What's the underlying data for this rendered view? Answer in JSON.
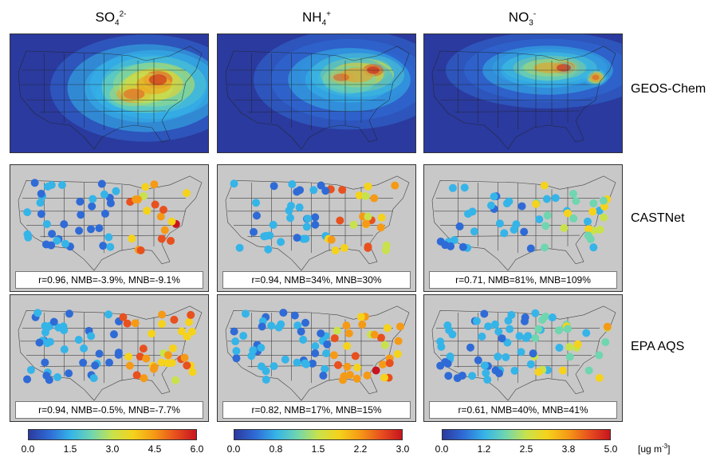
{
  "species": [
    {
      "key": "so4",
      "base": "SO",
      "sub": "4",
      "sup": "2-",
      "max": 6.0,
      "ticks": [
        "0.0",
        "1.5",
        "3.0",
        "4.5",
        "6.0"
      ]
    },
    {
      "key": "nh4",
      "base": "NH",
      "sub": "4",
      "sup": "+",
      "max": 3.0,
      "ticks": [
        "0.0",
        "0.8",
        "1.5",
        "2.2",
        "3.0"
      ]
    },
    {
      "key": "no3",
      "base": "NO",
      "sub": "3",
      "sup": "-",
      "max": 5.0,
      "ticks": [
        "0.0",
        "1.2",
        "2.5",
        "3.8",
        "5.0"
      ]
    }
  ],
  "rows": [
    {
      "key": "model",
      "label": "GEOS-Chem"
    },
    {
      "key": "castnet",
      "label": "CASTNet"
    },
    {
      "key": "aqs",
      "label": "EPA AQS"
    }
  ],
  "stats": {
    "castnet": [
      "r=0.96, NMB=-3.9%, MNB=-9.1%",
      "r=0.94, NMB=34%, MNB=30%",
      "r=0.71, NMB=81%, MNB=109%"
    ],
    "aqs": [
      "r=0.94, NMB=-0.5%, MNB=-7.7%",
      "r=0.82, NMB=17%, MNB=15%",
      "r=0.61, NMB=40%, MNB=41%"
    ]
  },
  "colorbar": {
    "colors": [
      "#2b3a9e",
      "#2f6bd6",
      "#35b4e8",
      "#6fd6b0",
      "#c8e24c",
      "#f5d21c",
      "#f59a16",
      "#e8501e",
      "#c8141e"
    ]
  },
  "units": {
    "base": "[ug m",
    "sup": "-3",
    "end": "]"
  },
  "ocean_color": "#2b3a9e",
  "land_color": "#c8c8c8"
}
